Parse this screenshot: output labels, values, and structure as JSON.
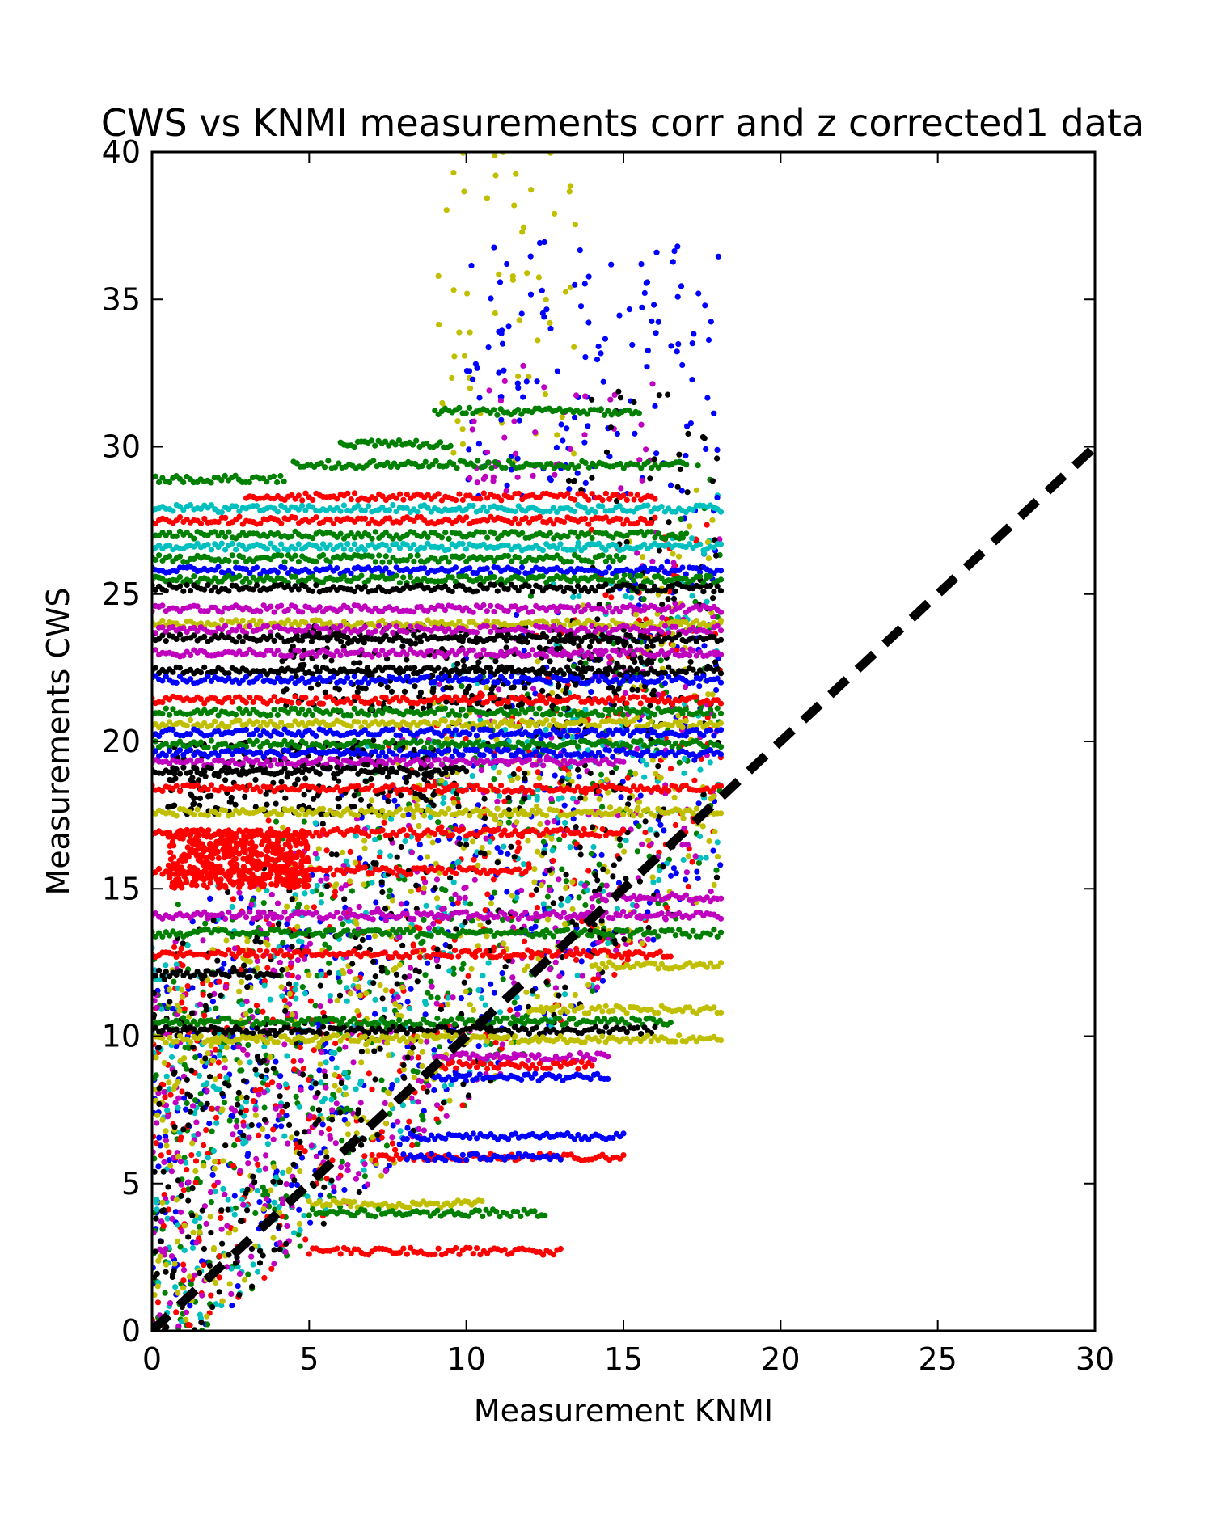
{
  "chart_data": {
    "type": "scatter",
    "title": "CWS vs KNMI measurements corr and z corrected1 data",
    "xlabel": "Measurement KNMI",
    "ylabel": "Measurements CWS",
    "xlim": [
      0,
      30
    ],
    "ylim": [
      0,
      40
    ],
    "xticks": [
      0,
      5,
      10,
      15,
      20,
      25,
      30
    ],
    "yticks": [
      0,
      5,
      10,
      15,
      20,
      25,
      30,
      35,
      40
    ],
    "grid": false,
    "legend": "none",
    "colors": [
      "#0000ff",
      "#008000",
      "#ff0000",
      "#00bfbf",
      "#bf00bf",
      "#bfbf00",
      "#000000"
    ],
    "x_max_observed": 18.1,
    "horizontal_bands": [
      {
        "color": "#008000",
        "y": 31.2,
        "x": [
          9.0,
          15.5
        ]
      },
      {
        "color": "#008000",
        "y": 30.1,
        "x": [
          6.0,
          9.5
        ]
      },
      {
        "color": "#008000",
        "y": 29.4,
        "x": [
          4.5,
          17.0
        ]
      },
      {
        "color": "#008000",
        "y": 28.9,
        "x": [
          0.0,
          4.2
        ]
      },
      {
        "color": "#ff0000",
        "y": 28.3,
        "x": [
          3.0,
          16.0
        ]
      },
      {
        "color": "#00bfbf",
        "y": 27.9,
        "x": [
          0.0,
          18.1
        ]
      },
      {
        "color": "#ff0000",
        "y": 27.5,
        "x": [
          0.0,
          16.0
        ]
      },
      {
        "color": "#008000",
        "y": 27.0,
        "x": [
          0.0,
          17.0
        ]
      },
      {
        "color": "#00bfbf",
        "y": 26.6,
        "x": [
          0.0,
          18.1
        ]
      },
      {
        "color": "#008000",
        "y": 26.2,
        "x": [
          0.0,
          15.0
        ]
      },
      {
        "color": "#0000ff",
        "y": 25.8,
        "x": [
          0.0,
          18.1
        ]
      },
      {
        "color": "#008000",
        "y": 25.5,
        "x": [
          0.0,
          18.1
        ]
      },
      {
        "color": "#000000",
        "y": 25.2,
        "x": [
          0.0,
          18.1
        ]
      },
      {
        "color": "#bf00bf",
        "y": 24.5,
        "x": [
          0.0,
          18.1
        ]
      },
      {
        "color": "#bfbf00",
        "y": 24.0,
        "x": [
          0.0,
          18.1
        ]
      },
      {
        "color": "#bf00bf",
        "y": 23.8,
        "x": [
          0.0,
          18.1
        ]
      },
      {
        "color": "#000000",
        "y": 23.5,
        "x": [
          0.0,
          18.1
        ]
      },
      {
        "color": "#bf00bf",
        "y": 23.0,
        "x": [
          0.0,
          18.1
        ]
      },
      {
        "color": "#000000",
        "y": 22.4,
        "x": [
          0.0,
          18.1
        ]
      },
      {
        "color": "#0000ff",
        "y": 22.1,
        "x": [
          0.0,
          18.1
        ]
      },
      {
        "color": "#ff0000",
        "y": 21.4,
        "x": [
          0.0,
          18.1
        ]
      },
      {
        "color": "#008000",
        "y": 21.0,
        "x": [
          0.0,
          18.1
        ]
      },
      {
        "color": "#bfbf00",
        "y": 20.6,
        "x": [
          0.0,
          18.1
        ]
      },
      {
        "color": "#0000ff",
        "y": 20.3,
        "x": [
          0.0,
          18.1
        ]
      },
      {
        "color": "#008000",
        "y": 19.9,
        "x": [
          0.0,
          18.1
        ]
      },
      {
        "color": "#0000ff",
        "y": 19.6,
        "x": [
          0.0,
          18.1
        ]
      },
      {
        "color": "#bf00bf",
        "y": 19.3,
        "x": [
          0.0,
          15.0
        ]
      },
      {
        "color": "#000000",
        "y": 19.0,
        "x": [
          0.0,
          10.0
        ]
      },
      {
        "color": "#ff0000",
        "y": 18.4,
        "x": [
          0.0,
          18.1
        ]
      },
      {
        "color": "#bfbf00",
        "y": 17.6,
        "x": [
          0.0,
          18.1
        ]
      },
      {
        "color": "#ff0000",
        "y": 16.9,
        "x": [
          0.0,
          15.0
        ]
      },
      {
        "color": "#ff0000",
        "y": 15.6,
        "x": [
          0.0,
          12.0
        ]
      },
      {
        "color": "#bf00bf",
        "y": 14.1,
        "x": [
          0.0,
          18.1
        ]
      },
      {
        "color": "#bf00bf",
        "y": 14.7,
        "x": [
          14.0,
          18.1
        ]
      },
      {
        "color": "#008000",
        "y": 13.5,
        "x": [
          0.0,
          18.1
        ]
      },
      {
        "color": "#ff0000",
        "y": 12.8,
        "x": [
          0.0,
          16.5
        ]
      },
      {
        "color": "#bfbf00",
        "y": 12.4,
        "x": [
          14.0,
          18.1
        ]
      },
      {
        "color": "#000000",
        "y": 12.1,
        "x": [
          0.0,
          4.0
        ]
      },
      {
        "color": "#008000",
        "y": 10.5,
        "x": [
          0.0,
          16.5
        ]
      },
      {
        "color": "#000000",
        "y": 10.2,
        "x": [
          0.0,
          16.0
        ]
      },
      {
        "color": "#bfbf00",
        "y": 10.9,
        "x": [
          12.0,
          18.1
        ]
      },
      {
        "color": "#bfbf00",
        "y": 9.9,
        "x": [
          0.0,
          18.1
        ]
      },
      {
        "color": "#bf00bf",
        "y": 9.3,
        "x": [
          9.0,
          14.5
        ]
      },
      {
        "color": "#ff0000",
        "y": 9.0,
        "x": [
          9.0,
          14.0
        ]
      },
      {
        "color": "#0000ff",
        "y": 8.6,
        "x": [
          9.0,
          14.5
        ]
      },
      {
        "color": "#0000ff",
        "y": 6.6,
        "x": [
          8.0,
          15.0
        ]
      },
      {
        "color": "#ff0000",
        "y": 5.9,
        "x": [
          7.0,
          15.0
        ]
      },
      {
        "color": "#0000ff",
        "y": 5.9,
        "x": [
          8.0,
          13.0
        ]
      },
      {
        "color": "#bfbf00",
        "y": 4.3,
        "x": [
          5.0,
          10.5
        ]
      },
      {
        "color": "#008000",
        "y": 4.0,
        "x": [
          5.0,
          12.5
        ]
      },
      {
        "color": "#ff0000",
        "y": 2.7,
        "x": [
          5.0,
          13.0
        ]
      }
    ],
    "clusters": [
      {
        "color": "#ff0000",
        "x": [
          0.5,
          5.0
        ],
        "y": [
          15.0,
          17.0
        ],
        "n": 500
      },
      {
        "color": "#000000",
        "x": [
          0.5,
          9.0
        ],
        "y": [
          17.5,
          20.0
        ],
        "n": 220
      },
      {
        "color": "#000000",
        "x": [
          4.0,
          16.0
        ],
        "y": [
          21.0,
          24.0
        ],
        "n": 320
      },
      {
        "color": "#bfbf00",
        "x": [
          9.0,
          13.5
        ],
        "y": [
          29.0,
          40.0
        ],
        "n": 60
      },
      {
        "color": "#0000ff",
        "x": [
          10.0,
          18.1
        ],
        "y": [
          28.0,
          37.0
        ],
        "n": 140
      },
      {
        "color": "#bf00bf",
        "x": [
          10.0,
          16.0
        ],
        "y": [
          28.0,
          33.0
        ],
        "n": 45
      },
      {
        "color": "#000000",
        "x": [
          13.0,
          18.1
        ],
        "y": [
          28.0,
          32.0
        ],
        "n": 25
      }
    ],
    "reference_line": {
      "x": [
        0,
        30
      ],
      "y": [
        0,
        30
      ],
      "style": "dashed",
      "color": "#000000"
    }
  }
}
